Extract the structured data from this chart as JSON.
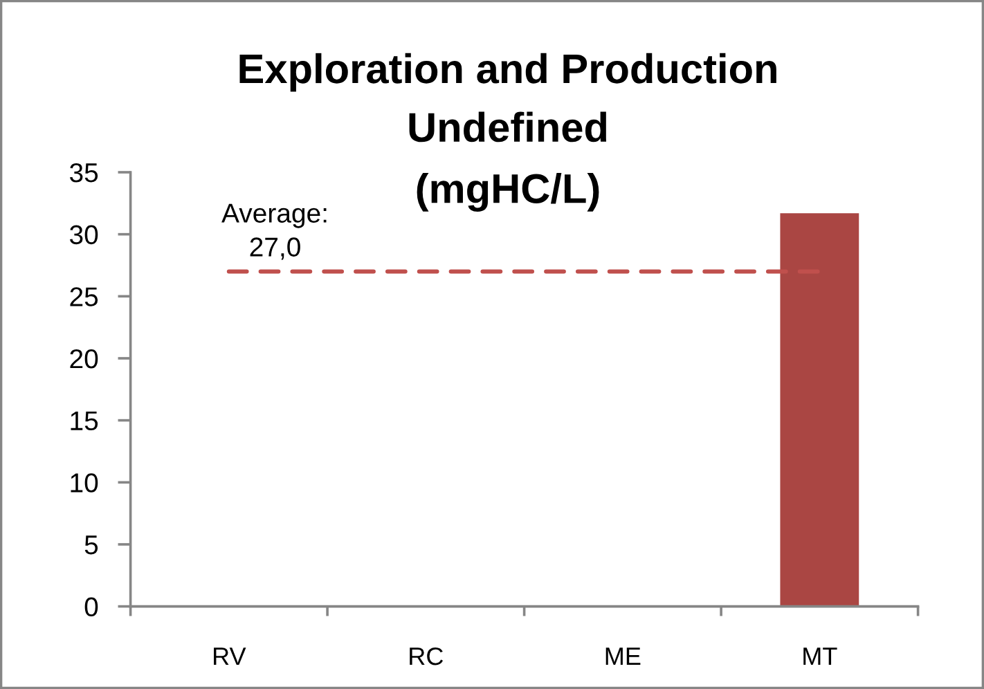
{
  "chart_data": {
    "type": "bar",
    "title": "Exploration and Production\nUndefined",
    "subtitle": "(mgHC/L)",
    "categories": [
      "RV",
      "RC",
      "ME",
      "MT"
    ],
    "values": [
      null,
      null,
      null,
      31.7
    ],
    "color": "#aa4643",
    "ylim": [
      0,
      35
    ],
    "yticks": [
      0,
      5,
      10,
      15,
      20,
      25,
      30,
      35
    ],
    "ref_lines": [
      {
        "axis": "y",
        "value": 27.0,
        "label": "Average:\n27,0",
        "color": "#c0504d",
        "line_style": "dashed"
      }
    ]
  }
}
